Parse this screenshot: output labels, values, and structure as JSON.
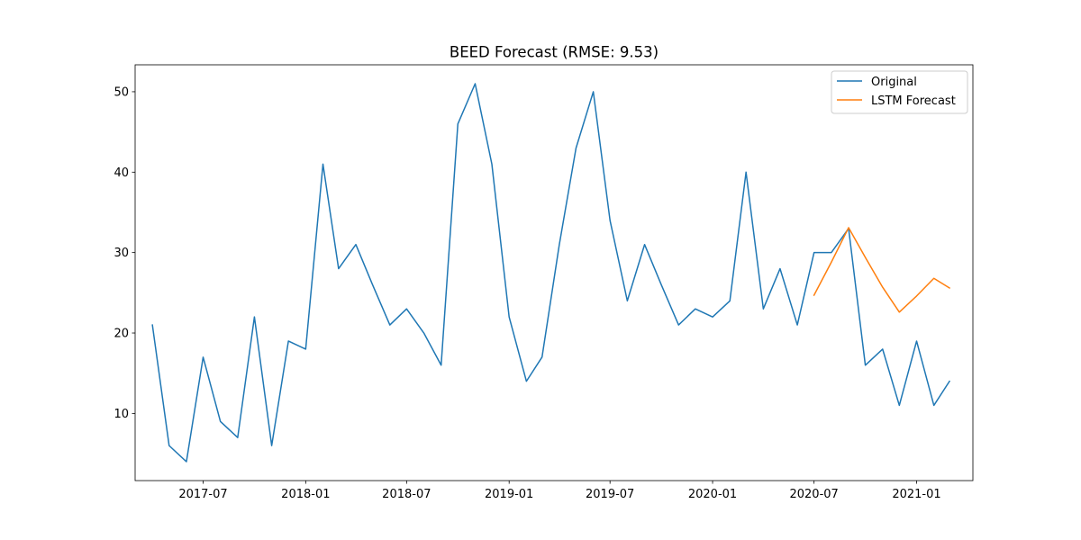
{
  "chart_data": {
    "type": "line",
    "title": "BEED Forecast (RMSE: 9.53)",
    "xlabel": "",
    "ylabel": "",
    "x_axis": "date",
    "xlim": [
      "2017-03-01",
      "2021-04-12"
    ],
    "ylim": [
      1.65,
      53.35
    ],
    "x_ticks": [
      {
        "date": "2017-07-01",
        "label": "2017-07"
      },
      {
        "date": "2018-01-01",
        "label": "2018-01"
      },
      {
        "date": "2018-07-01",
        "label": "2018-07"
      },
      {
        "date": "2019-01-01",
        "label": "2019-01"
      },
      {
        "date": "2019-07-01",
        "label": "2019-07"
      },
      {
        "date": "2020-01-01",
        "label": "2020-01"
      },
      {
        "date": "2020-07-01",
        "label": "2020-07"
      },
      {
        "date": "2021-01-01",
        "label": "2021-01"
      }
    ],
    "y_ticks": [
      10,
      20,
      30,
      40,
      50
    ],
    "grid": false,
    "legend_position": "top-right",
    "series": [
      {
        "name": "Original",
        "color": "#1f77b4",
        "x": [
          "2017-04-01",
          "2017-05-01",
          "2017-06-01",
          "2017-07-01",
          "2017-08-01",
          "2017-09-01",
          "2017-10-01",
          "2017-11-01",
          "2017-12-01",
          "2018-01-01",
          "2018-02-01",
          "2018-03-01",
          "2018-04-01",
          "2018-05-01",
          "2018-06-01",
          "2018-07-01",
          "2018-08-01",
          "2018-09-01",
          "2018-10-01",
          "2018-11-01",
          "2018-12-01",
          "2019-01-01",
          "2019-02-01",
          "2019-03-01",
          "2019-04-01",
          "2019-05-01",
          "2019-06-01",
          "2019-07-01",
          "2019-08-01",
          "2019-09-01",
          "2019-10-01",
          "2019-11-01",
          "2019-12-01",
          "2020-01-01",
          "2020-02-01",
          "2020-03-01",
          "2020-04-01",
          "2020-05-01",
          "2020-06-01",
          "2020-07-01",
          "2020-08-01",
          "2020-09-01",
          "2020-10-01",
          "2020-11-01",
          "2020-12-01",
          "2021-01-01",
          "2021-02-01",
          "2021-03-01"
        ],
        "values": [
          21,
          6,
          4,
          17,
          9,
          7,
          22,
          6,
          19,
          18,
          41,
          28,
          31,
          26,
          21,
          23,
          20,
          16,
          46,
          51,
          41,
          22,
          14,
          17,
          31,
          43,
          50,
          34,
          24,
          31,
          26,
          21,
          23,
          22,
          24,
          40,
          23,
          28,
          21,
          30,
          30,
          33,
          16,
          18,
          11,
          19,
          11,
          14
        ]
      },
      {
        "name": "LSTM Forecast",
        "color": "#ff7f0e",
        "x": [
          "2020-07-01",
          "2020-08-01",
          "2020-09-01",
          "2020-10-01",
          "2020-11-01",
          "2020-12-01",
          "2021-01-01",
          "2021-02-01",
          "2021-03-01"
        ],
        "values": [
          24.7,
          28.8,
          33.1,
          29.4,
          25.7,
          22.6,
          24.6,
          26.8,
          25.6
        ]
      }
    ]
  }
}
